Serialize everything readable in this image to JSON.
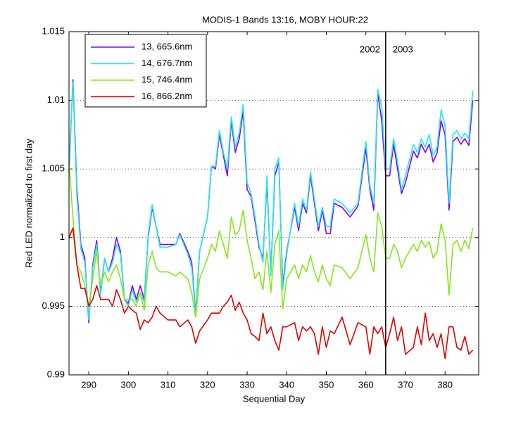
{
  "chart_data": {
    "type": "line",
    "title": "MODIS-1 Bands 13:16, MOBY HOUR:22",
    "x_label": "Sequential Day",
    "y_label": "Red LED normalized to first day",
    "xlim": [
      285,
      388.5
    ],
    "ylim": [
      0.99,
      1.015
    ],
    "xticks": [
      290,
      300,
      310,
      320,
      330,
      340,
      350,
      360,
      370,
      380
    ],
    "yticks": [
      0.99,
      0.995,
      1,
      1.005,
      1.01,
      1.015
    ],
    "grid_y": true,
    "legend_position": "upper left",
    "divider_x": 365,
    "annotations": [
      "2002",
      "2003"
    ],
    "x": [
      285,
      286,
      287,
      288,
      289,
      290,
      291,
      292,
      293,
      294,
      295,
      296,
      297,
      298,
      299,
      300,
      301,
      302,
      303,
      304,
      305,
      306,
      307,
      308,
      310,
      312,
      313,
      315,
      316,
      317,
      318,
      320,
      321,
      322,
      323,
      324,
      325,
      326,
      327,
      328,
      329,
      330,
      331,
      332,
      333,
      334,
      335,
      336,
      337,
      338,
      339,
      340,
      342,
      343,
      344,
      345,
      346,
      347,
      348,
      349,
      350,
      351,
      352,
      354,
      356,
      358,
      360,
      361,
      362,
      363,
      364,
      365,
      366,
      367,
      368,
      369,
      370,
      372,
      373,
      374,
      375,
      376,
      377,
      378,
      379,
      380,
      381,
      382,
      383,
      384,
      385,
      386,
      387
    ],
    "series": [
      {
        "name": "13, 665.6nm",
        "color": "#8000ff",
        "values": [
          1.0048,
          1.0115,
          1.0035,
          0.9995,
          0.9985,
          0.9938,
          0.998,
          0.9998,
          0.996,
          0.9985,
          0.9975,
          0.9985,
          1.0,
          0.999,
          0.9955,
          0.9952,
          0.9965,
          0.9955,
          0.9965,
          0.9955,
          1.0,
          1.0022,
          1.0008,
          0.9995,
          0.9995,
          0.9995,
          1.0003,
          0.999,
          0.9982,
          0.9945,
          0.999,
          1.0015,
          1.0052,
          1.005,
          1.0075,
          1.006,
          1.0045,
          1.0085,
          1.0062,
          1.0072,
          1.0092,
          1.0035,
          1.003,
          1.0012,
          0.9993,
          0.9985,
          1.004,
          0.9975,
          1.0045,
          1.0055,
          0.9965,
          0.999,
          1.0022,
          1.0005,
          1.0025,
          1.0018,
          1.0045,
          1.0025,
          1.0005,
          1.002,
          1.0003,
          1.0003,
          1.0025,
          1.0022,
          1.0015,
          1.0023,
          1.0065,
          1.0035,
          1.002,
          1.0105,
          1.0085,
          1.0045,
          1.0045,
          1.0068,
          1.005,
          1.0032,
          1.004,
          1.0063,
          1.0058,
          1.0068,
          1.0062,
          1.0068,
          1.0055,
          1.0062,
          1.0085,
          1.0075,
          1.002,
          1.007,
          1.0073,
          1.0068,
          1.0072,
          1.0067,
          1.01
        ]
      },
      {
        "name": "14, 676.7nm",
        "color": "#1ee8f0",
        "values": [
          1.0052,
          1.0113,
          1.003,
          0.9992,
          0.9982,
          0.994,
          0.9978,
          0.9995,
          0.9958,
          0.9985,
          0.9975,
          0.9982,
          0.9995,
          0.9988,
          0.9955,
          0.995,
          0.9962,
          0.9953,
          0.996,
          0.9953,
          1.0002,
          1.0024,
          1.0008,
          0.9993,
          0.9993,
          0.9995,
          1.0002,
          0.9988,
          0.9978,
          0.9944,
          0.999,
          1.0015,
          1.0052,
          1.0052,
          1.0078,
          1.0062,
          1.005,
          1.0088,
          1.0066,
          1.0076,
          1.0097,
          1.004,
          1.0032,
          1.0015,
          0.9995,
          0.9982,
          1.0045,
          0.9972,
          1.005,
          1.0058,
          0.9962,
          0.9988,
          1.0025,
          1.0008,
          1.0028,
          1.002,
          1.0048,
          1.0028,
          1.0008,
          1.0022,
          1.0008,
          1.0008,
          1.0028,
          1.0025,
          1.0018,
          1.0025,
          1.007,
          1.0038,
          1.0025,
          1.0108,
          1.0095,
          1.005,
          1.005,
          1.0072,
          1.0055,
          1.0035,
          1.0045,
          1.0068,
          1.0062,
          1.0072,
          1.0066,
          1.0075,
          1.006,
          1.0066,
          1.0093,
          1.0082,
          1.0025,
          1.0075,
          1.0078,
          1.0072,
          1.0076,
          1.0072,
          1.0107
        ]
      },
      {
        "name": "15, 746.4nm",
        "color": "#86e818",
        "values": [
          1.0055,
          1.0015,
          0.998,
          0.9975,
          0.9965,
          0.995,
          0.997,
          0.999,
          0.9965,
          0.9975,
          0.9968,
          0.9975,
          0.998,
          0.997,
          0.9955,
          0.9955,
          0.9955,
          0.995,
          0.996,
          0.9947,
          0.998,
          0.999,
          0.9978,
          0.9975,
          0.9975,
          0.9972,
          0.9975,
          0.997,
          0.996,
          0.9942,
          0.997,
          0.9985,
          0.9995,
          0.999,
          1.0005,
          0.9995,
          0.9985,
          1.0015,
          1.0002,
          1.0005,
          1.002,
          0.9998,
          0.9985,
          0.997,
          0.9975,
          0.9962,
          0.999,
          0.996,
          0.9995,
          1.0005,
          0.9948,
          0.997,
          0.998,
          0.997,
          0.998,
          0.9975,
          0.9987,
          0.9975,
          0.9968,
          0.998,
          0.997,
          0.9965,
          0.998,
          0.9978,
          0.997,
          0.9978,
          1.0002,
          0.9985,
          0.9975,
          1.0018,
          1.0008,
          0.9985,
          0.9985,
          0.9995,
          0.999,
          0.9978,
          0.9985,
          0.9995,
          0.999,
          0.9998,
          0.9993,
          0.9997,
          0.9985,
          0.999,
          1.001,
          0.9998,
          0.9958,
          0.9995,
          0.9998,
          0.999,
          0.9998,
          0.9992,
          1.0007
        ]
      },
      {
        "name": "16, 866.2nm",
        "color": "#e00000",
        "values": [
          1.0,
          1.0007,
          0.998,
          0.9963,
          0.9963,
          0.995,
          0.9955,
          0.9965,
          0.9955,
          0.9955,
          0.9955,
          0.995,
          0.9962,
          0.9955,
          0.9945,
          0.995,
          0.9947,
          0.9945,
          0.9933,
          0.994,
          0.9938,
          0.9942,
          0.995,
          0.9945,
          0.994,
          0.994,
          0.9935,
          0.994,
          0.9935,
          0.9923,
          0.9932,
          0.994,
          0.9945,
          0.9945,
          0.9945,
          0.995,
          0.9953,
          0.9958,
          0.9947,
          0.9953,
          0.9945,
          0.994,
          0.993,
          0.9928,
          0.9925,
          0.9945,
          0.993,
          0.9935,
          0.9925,
          0.9918,
          0.9935,
          0.9935,
          0.9938,
          0.9925,
          0.9935,
          0.9932,
          0.9935,
          0.993,
          0.9915,
          0.9935,
          0.992,
          0.9932,
          0.993,
          0.9942,
          0.9922,
          0.9938,
          0.9935,
          0.9915,
          0.9935,
          0.993,
          0.9935,
          0.992,
          0.993,
          0.9942,
          0.9925,
          0.9935,
          0.9915,
          0.992,
          0.9935,
          0.9922,
          0.9945,
          0.9925,
          0.993,
          0.992,
          0.993,
          0.9912,
          0.9935,
          0.9935,
          0.992,
          0.9918,
          0.9928,
          0.9915,
          0.9918
        ]
      }
    ]
  }
}
